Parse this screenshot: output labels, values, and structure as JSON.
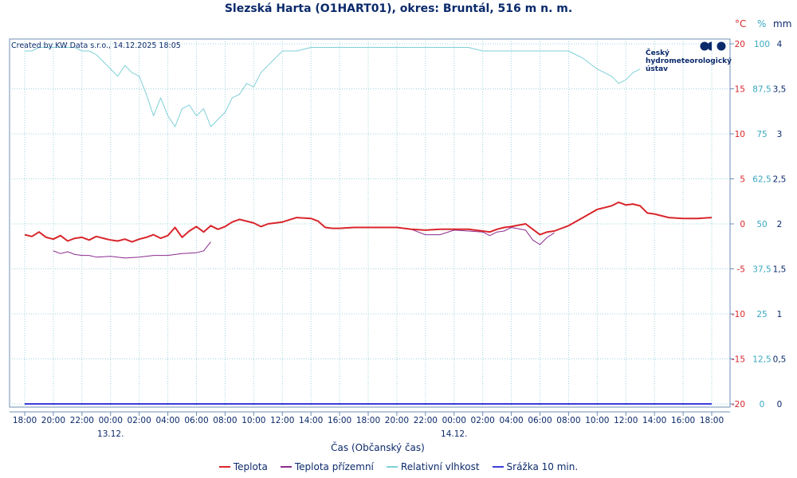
{
  "header": {
    "title": "Slezská Harta (O1HART01), okres: Bruntál, 516 m n. m.",
    "credit": "Created by KW Data s.r.o., 14.12.2025 18:05",
    "logo_lines": [
      "Český",
      "hydrometeorologický",
      "ústav"
    ]
  },
  "units": {
    "temp": "°C",
    "humidity": "%",
    "precip": "mm"
  },
  "colors": {
    "temp": "#d8262c",
    "ground": "#8b2b8f",
    "humidity": "#7fd0d8",
    "precip": "#3c3cdc",
    "grid": "#9fd3dd",
    "axis_temp": "#d8262c",
    "axis_hum": "#39a8c0",
    "axis_mm": "#0b2a6b",
    "text": "#0b2a6b"
  },
  "chart_data": {
    "type": "line",
    "title": "Slezská Harta (O1HART01), okres: Bruntál, 516 m n. m.",
    "xlabel": "Čas (Občanský čas)",
    "x_unit": "hours since 13.12. 00:00",
    "x_range": [
      -6,
      42.5
    ],
    "x_ticks": [
      -6,
      -4,
      -2,
      0,
      2,
      4,
      6,
      8,
      10,
      12,
      14,
      16,
      18,
      20,
      22,
      24,
      26,
      28,
      30,
      32,
      34,
      36,
      38,
      40,
      42
    ],
    "x_tick_labels": [
      "18:00",
      "20:00",
      "22:00",
      "00:00",
      "02:00",
      "04:00",
      "06:00",
      "08:00",
      "10:00",
      "12:00",
      "14:00",
      "16:00",
      "18:00",
      "20:00",
      "22:00",
      "00:00",
      "02:00",
      "04:00",
      "06:00",
      "08:00",
      "10:00",
      "12:00",
      "14:00",
      "16:00",
      "18:00"
    ],
    "date_labels": [
      {
        "x": 0,
        "label": "13.12."
      },
      {
        "x": 24,
        "label": "14.12."
      }
    ],
    "axes": {
      "temp": {
        "label": "°C",
        "range": [
          -20,
          20
        ],
        "ticks": [
          20,
          15,
          10,
          5,
          0,
          -5,
          -10,
          -15,
          -20
        ]
      },
      "humidity": {
        "label": "%",
        "range": [
          0,
          100
        ],
        "ticks": [
          100,
          87.5,
          75,
          62.5,
          50,
          37.5,
          25,
          12.5,
          0
        ],
        "tick_labels": [
          "100",
          "87,5",
          "75",
          "62,5",
          "50",
          "37,5",
          "25",
          "12,5",
          "0"
        ]
      },
      "precip": {
        "label": "mm",
        "range": [
          0,
          4
        ],
        "ticks": [
          4,
          3.5,
          3,
          2.5,
          2,
          1.5,
          1,
          0.5,
          0
        ],
        "tick_labels": [
          "4",
          "3,5",
          "3",
          "2,5",
          "2",
          "1,5",
          "1",
          "0,5",
          "0"
        ]
      }
    },
    "series": [
      {
        "name": "Teplota",
        "axis": "temp",
        "x": [
          -6,
          -5.5,
          -5,
          -4.5,
          -4,
          -3.5,
          -3,
          -2.5,
          -2,
          -1.5,
          -1,
          -0.5,
          0,
          0.5,
          1,
          1.5,
          2,
          2.5,
          3,
          3.5,
          4,
          4.5,
          5,
          5.5,
          6,
          6.5,
          7,
          7.5,
          8,
          8.5,
          9,
          9.5,
          10,
          10.5,
          11,
          11.5,
          12,
          13,
          14,
          14.5,
          15,
          15.5,
          16,
          17,
          18,
          19,
          20,
          21,
          22,
          23,
          24,
          25,
          26,
          26.5,
          27,
          27.5,
          28,
          29,
          29.5,
          30,
          30.5,
          31,
          32,
          33,
          34,
          35,
          35.5,
          36,
          36.5,
          37,
          37.5,
          38,
          39,
          40,
          41,
          42
        ],
        "y": [
          -1.2,
          -1.4,
          -0.9,
          -1.5,
          -1.7,
          -1.3,
          -1.9,
          -1.6,
          -1.5,
          -1.8,
          -1.4,
          -1.6,
          -1.8,
          -1.9,
          -1.7,
          -2.0,
          -1.7,
          -1.5,
          -1.2,
          -1.6,
          -1.3,
          -0.4,
          -1.5,
          -0.8,
          -0.3,
          -0.9,
          -0.2,
          -0.6,
          -0.3,
          0.2,
          0.5,
          0.3,
          0.1,
          -0.3,
          0.0,
          0.1,
          0.2,
          0.7,
          0.6,
          0.3,
          -0.4,
          -0.5,
          -0.5,
          -0.4,
          -0.4,
          -0.4,
          -0.4,
          -0.6,
          -0.7,
          -0.6,
          -0.6,
          -0.6,
          -0.8,
          -0.9,
          -0.6,
          -0.4,
          -0.3,
          0.0,
          -0.6,
          -1.2,
          -0.9,
          -0.8,
          -0.2,
          0.7,
          1.6,
          2.0,
          2.4,
          2.1,
          2.2,
          2.0,
          1.2,
          1.1,
          0.7,
          0.6,
          0.6,
          0.7
        ]
      },
      {
        "name": "Teplota přízemní",
        "axis": "temp",
        "x": [
          -4,
          -3.5,
          -3,
          -2.5,
          -2,
          -1.5,
          -1,
          0,
          1,
          2,
          3,
          4,
          5,
          6,
          6.5,
          7
        ],
        "y": [
          -3.0,
          -3.3,
          -3.1,
          -3.4,
          -3.5,
          -3.5,
          -3.7,
          -3.6,
          -3.8,
          -3.7,
          -3.5,
          -3.5,
          -3.3,
          -3.2,
          -3.0,
          -2.0
        ],
        "gap_after": 15,
        "x2": [
          20,
          21,
          22,
          23,
          24,
          25,
          26,
          26.5,
          27,
          27.5,
          28,
          29,
          29.5,
          30,
          30.5,
          31
        ],
        "y2": [
          -0.4,
          -0.6,
          -1.2,
          -1.2,
          -0.7,
          -0.8,
          -0.9,
          -1.3,
          -0.9,
          -0.8,
          -0.4,
          -0.7,
          -1.8,
          -2.3,
          -1.5,
          -1.0
        ]
      },
      {
        "name": "Relativní vlhkost",
        "axis": "humidity",
        "x": [
          -6,
          -5.5,
          -5,
          -4.5,
          -4,
          -3.5,
          -3,
          -2.5,
          -2,
          -1.5,
          -1,
          -0.5,
          0,
          0.5,
          1,
          1.5,
          2,
          2.5,
          3,
          3.5,
          4,
          4.5,
          5,
          5.5,
          6,
          6.5,
          7,
          7.5,
          8,
          8.5,
          9,
          9.5,
          10,
          10.5,
          11,
          11.5,
          12,
          13,
          14,
          15,
          16,
          17,
          18,
          19,
          20,
          21,
          22,
          23,
          24,
          25,
          26,
          27,
          28,
          29,
          30,
          31,
          32,
          33,
          34,
          35,
          35.5,
          36,
          36.5,
          37
        ],
        "y": [
          98,
          98,
          99,
          99,
          99,
          99,
          99,
          99,
          98,
          98,
          97,
          95,
          93,
          91,
          94,
          92,
          91,
          86,
          80,
          85,
          80,
          77,
          82,
          83,
          80,
          82,
          77,
          79,
          81,
          85,
          86,
          89,
          88,
          92,
          94,
          96,
          98,
          98,
          99,
          99,
          99,
          99,
          99,
          99,
          99,
          99,
          99,
          99,
          99,
          99,
          98,
          98,
          98,
          98,
          98,
          98,
          98,
          96,
          93,
          91,
          89,
          90,
          92,
          93
        ]
      },
      {
        "name": "Srážka 10 min.",
        "axis": "precip",
        "x": [
          -6,
          42
        ],
        "y": [
          0,
          0
        ]
      }
    ]
  },
  "legend": [
    {
      "label": "Teplota"
    },
    {
      "label": "Teplota přízemní"
    },
    {
      "label": "Relativní vlhkost"
    },
    {
      "label": "Srážka 10 min."
    }
  ]
}
